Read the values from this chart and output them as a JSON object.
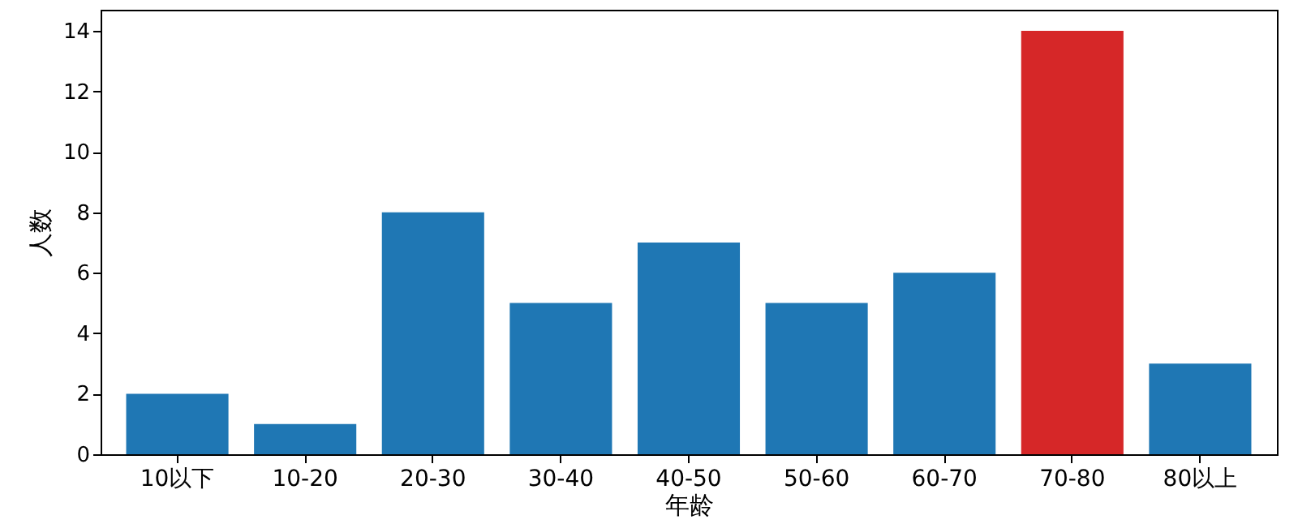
{
  "chart_data": {
    "type": "bar",
    "xlabel": "年龄",
    "ylabel": "人数",
    "categories": [
      "10以下",
      "10-20",
      "20-30",
      "30-40",
      "40-50",
      "50-60",
      "60-70",
      "70-80",
      "80以上"
    ],
    "values": [
      2,
      1,
      8,
      5,
      7,
      5,
      6,
      14,
      3
    ],
    "colors": [
      "#1f77b4",
      "#1f77b4",
      "#1f77b4",
      "#1f77b4",
      "#1f77b4",
      "#1f77b4",
      "#1f77b4",
      "#d62728",
      "#1f77b4"
    ],
    "ylim": [
      0,
      14.7
    ],
    "yticks": [
      0,
      2,
      4,
      6,
      8,
      10,
      12,
      14
    ],
    "grid": false
  }
}
